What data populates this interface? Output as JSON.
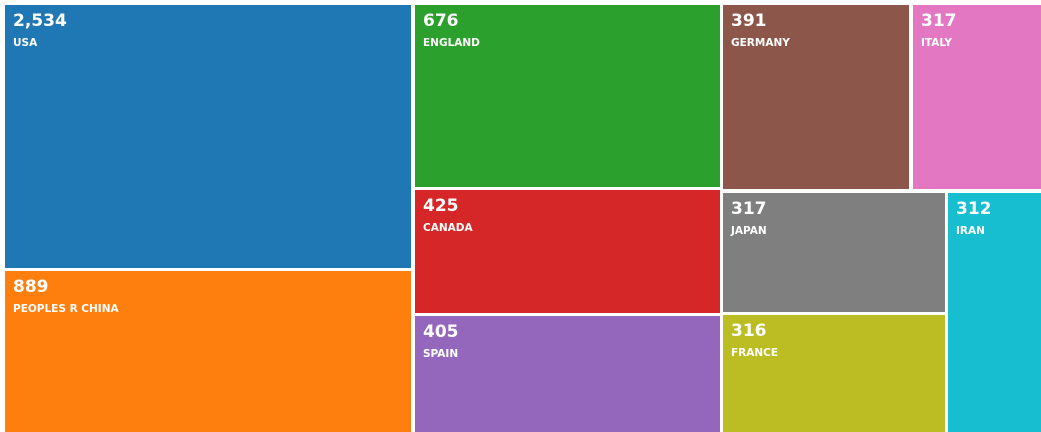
{
  "chart_data": {
    "type": "treemap",
    "categories": [
      "USA",
      "PEOPLES R CHINA",
      "ENGLAND",
      "CANADA",
      "SPAIN",
      "GERMANY",
      "ITALY",
      "JAPAN",
      "FRANCE",
      "IRAN"
    ],
    "values": [
      2534,
      889,
      676,
      425,
      405,
      391,
      317,
      317,
      316,
      312
    ],
    "value_labels": [
      "2,534",
      "889",
      "676",
      "425",
      "405",
      "391",
      "317",
      "317",
      "316",
      "312"
    ],
    "colors": [
      "#1f77b4",
      "#ff7f0e",
      "#2ca02c",
      "#d62728",
      "#9467bd",
      "#8c564b",
      "#e377c2",
      "#7f7f7f",
      "#bcbd22",
      "#17becf"
    ]
  }
}
